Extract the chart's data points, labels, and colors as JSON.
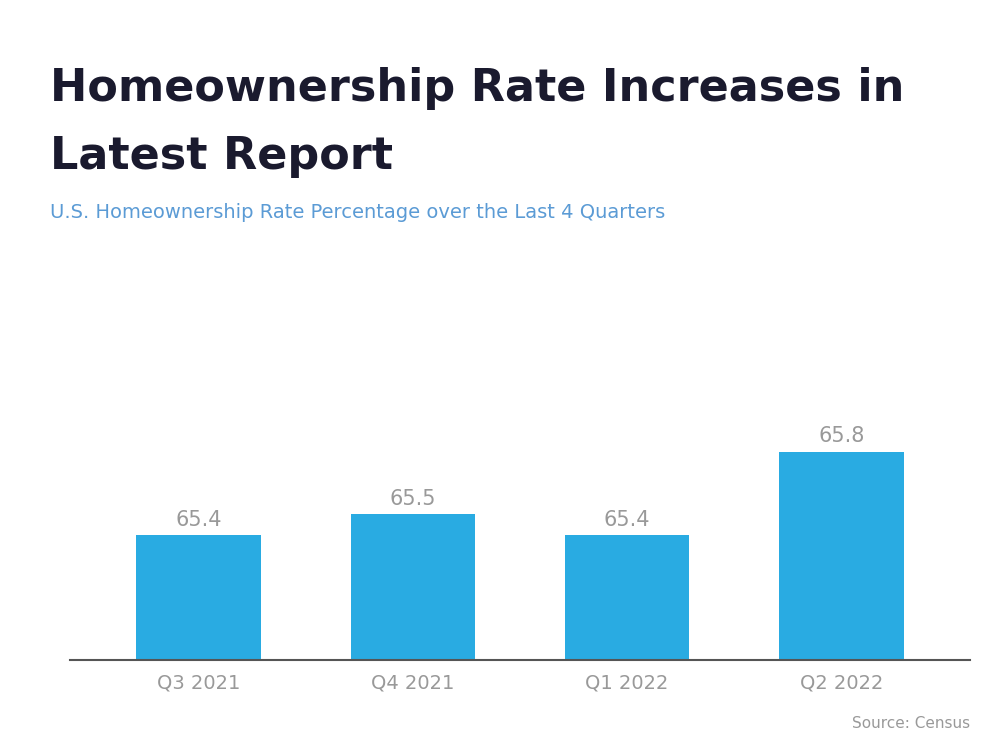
{
  "title_line1": "Homeownership Rate Increases in",
  "title_line2": "Latest Report",
  "subtitle": "U.S. Homeownership Rate Percentage over the Last 4 Quarters",
  "categories": [
    "Q3 2021",
    "Q4 2021",
    "Q1 2022",
    "Q2 2022"
  ],
  "values": [
    65.4,
    65.5,
    65.4,
    65.8
  ],
  "bar_color": "#29ABE2",
  "title_color": "#1a1a2e",
  "subtitle_color": "#5b9bd5",
  "label_color": "#999999",
  "xtick_color": "#999999",
  "source_text": "Source: Census",
  "source_color": "#999999",
  "header_bar_color": "#29ABE2",
  "background_color": "#ffffff",
  "ylim_min": 64.8,
  "ylim_max": 66.6,
  "title_fontsize": 32,
  "subtitle_fontsize": 14,
  "label_fontsize": 15,
  "xtick_fontsize": 14,
  "source_fontsize": 11
}
